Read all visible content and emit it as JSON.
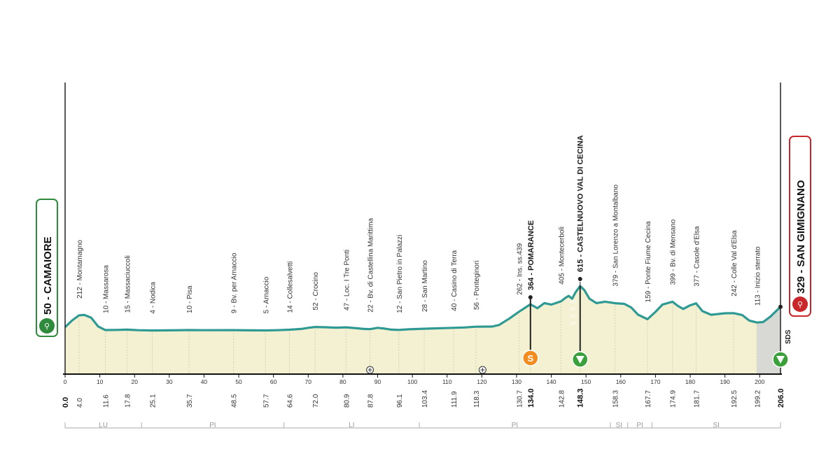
{
  "chart_data": {
    "type": "area",
    "title": "",
    "xlabel": "",
    "ylabel": "",
    "xlim": [
      0,
      206
    ],
    "ylim": [
      0,
      750
    ],
    "colors": {
      "line": "#2f9a93",
      "fill": "#f3f1d2",
      "start_badge": "#2e8b3c",
      "finish_badge": "#c8262b",
      "sprint_marker": "#f28c1f",
      "kom_marker": "#3aa03a",
      "spike": "#222222"
    },
    "x_ticks": [
      0,
      10,
      20,
      30,
      40,
      50,
      60,
      70,
      80,
      90,
      100,
      110,
      120,
      130,
      140,
      150,
      160,
      170,
      180,
      190,
      200
    ],
    "alt_scale": [
      "400",
      "300",
      "200",
      "100"
    ],
    "profile": [
      [
        0,
        50
      ],
      [
        2,
        140
      ],
      [
        4,
        212
      ],
      [
        5.5,
        218
      ],
      [
        7.5,
        180
      ],
      [
        9.5,
        60
      ],
      [
        11.6,
        10
      ],
      [
        15,
        12
      ],
      [
        17.8,
        15
      ],
      [
        21,
        8
      ],
      [
        25.1,
        4
      ],
      [
        30,
        6
      ],
      [
        35.7,
        10
      ],
      [
        40,
        8
      ],
      [
        48.5,
        9
      ],
      [
        53,
        6
      ],
      [
        57.7,
        5
      ],
      [
        61,
        8
      ],
      [
        64.6,
        14
      ],
      [
        68,
        25
      ],
      [
        70,
        40
      ],
      [
        72,
        52
      ],
      [
        75,
        48
      ],
      [
        78,
        42
      ],
      [
        80.9,
        47
      ],
      [
        84,
        35
      ],
      [
        86,
        25
      ],
      [
        87.8,
        22
      ],
      [
        90,
        40
      ],
      [
        92,
        30
      ],
      [
        94,
        15
      ],
      [
        96.1,
        12
      ],
      [
        99,
        20
      ],
      [
        103.4,
        28
      ],
      [
        108,
        35
      ],
      [
        111.9,
        40
      ],
      [
        115,
        45
      ],
      [
        118.3,
        56
      ],
      [
        123,
        58
      ],
      [
        125,
        80
      ],
      [
        128,
        170
      ],
      [
        130.7,
        262
      ],
      [
        134,
        364
      ],
      [
        136,
        310
      ],
      [
        138,
        380
      ],
      [
        140,
        360
      ],
      [
        142.8,
        405
      ],
      [
        144,
        450
      ],
      [
        145,
        480
      ],
      [
        146,
        440
      ],
      [
        147,
        530
      ],
      [
        148.3,
        615
      ],
      [
        149.5,
        560
      ],
      [
        151,
        440
      ],
      [
        153,
        380
      ],
      [
        155.5,
        400
      ],
      [
        158.3,
        379
      ],
      [
        161,
        370
      ],
      [
        163,
        320
      ],
      [
        165,
        220
      ],
      [
        167.7,
        159
      ],
      [
        170,
        260
      ],
      [
        172,
        360
      ],
      [
        174.9,
        399
      ],
      [
        176.5,
        340
      ],
      [
        178,
        300
      ],
      [
        180,
        350
      ],
      [
        181.7,
        377
      ],
      [
        183.5,
        270
      ],
      [
        186,
        220
      ],
      [
        190,
        240
      ],
      [
        192.5,
        242
      ],
      [
        195,
        215
      ],
      [
        197,
        140
      ],
      [
        199.2,
        113
      ],
      [
        201,
        120
      ],
      [
        203,
        190
      ],
      [
        206,
        329
      ]
    ],
    "unpaved_from_km": 199.2,
    "waypoints": [
      {
        "km": 4.0,
        "label": "212 - Montamagno"
      },
      {
        "km": 11.6,
        "label": "10 - Massarosa"
      },
      {
        "km": 17.8,
        "label": "15 - Massaciuccoli"
      },
      {
        "km": 25.1,
        "label": "4 - Nodica"
      },
      {
        "km": 35.7,
        "label": "10 - Pisa"
      },
      {
        "km": 48.5,
        "label": "9 - Bv. per Arnaccio"
      },
      {
        "km": 57.7,
        "label": "5 - Arnaccio"
      },
      {
        "km": 64.6,
        "label": "14 - Collesalvetti"
      },
      {
        "km": 72.0,
        "label": "52 - Crocino"
      },
      {
        "km": 80.9,
        "label": "47 - Loc. I Tre Ponti"
      },
      {
        "km": 87.8,
        "label": "22 - Bv. di Castellina Marittima"
      },
      {
        "km": 96.1,
        "label": "12 - San Pietro in Palazzi"
      },
      {
        "km": 103.4,
        "label": "28 - San Martino"
      },
      {
        "km": 111.9,
        "label": "40 - Casino di Terra"
      },
      {
        "km": 118.3,
        "label": "56 - Ponteginori"
      },
      {
        "km": 130.7,
        "label": "262 - Ins. ss.439"
      },
      {
        "km": 134.0,
        "label": "364 - POMARANCE",
        "major": true
      },
      {
        "km": 142.8,
        "label": "405 - Montecerboli"
      },
      {
        "km": 148.3,
        "label": "615 - CASTELNUOVO VAL DI CECINA",
        "major": true
      },
      {
        "km": 158.3,
        "label": "379 - San Lorenzo a Montalbano"
      },
      {
        "km": 167.7,
        "label": "159 - Ponte Fiume Cecina"
      },
      {
        "km": 174.9,
        "label": "399 - Bv. di Mensano"
      },
      {
        "km": 181.7,
        "label": "377 - Casole d'Elsa"
      },
      {
        "km": 192.5,
        "label": "242 - Colle Val d'Elsa"
      },
      {
        "km": 199.2,
        "label": "113 - Inizio sterrato"
      }
    ],
    "km_labels": [
      {
        "km": 0,
        "label": "0.0",
        "major": true
      },
      {
        "km": 4.0,
        "label": "4.0"
      },
      {
        "km": 11.6,
        "label": "11.6"
      },
      {
        "km": 17.8,
        "label": "17.8"
      },
      {
        "km": 25.1,
        "label": "25.1"
      },
      {
        "km": 35.7,
        "label": "35.7"
      },
      {
        "km": 48.5,
        "label": "48.5"
      },
      {
        "km": 57.7,
        "label": "57.7"
      },
      {
        "km": 64.6,
        "label": "64.6"
      },
      {
        "km": 72.0,
        "label": "72.0"
      },
      {
        "km": 80.9,
        "label": "80.9"
      },
      {
        "km": 87.8,
        "label": "87.8"
      },
      {
        "km": 96.1,
        "label": "96.1"
      },
      {
        "km": 103.4,
        "label": "103.4"
      },
      {
        "km": 111.9,
        "label": "111.9"
      },
      {
        "km": 118.3,
        "label": "118.3"
      },
      {
        "km": 130.7,
        "label": "130.7"
      },
      {
        "km": 134.0,
        "label": "134.0",
        "major": true
      },
      {
        "km": 142.8,
        "label": "142.8"
      },
      {
        "km": 148.3,
        "label": "148.3",
        "major": true
      },
      {
        "km": 158.3,
        "label": "158.3"
      },
      {
        "km": 167.7,
        "label": "167.7"
      },
      {
        "km": 174.9,
        "label": "174.9"
      },
      {
        "km": 181.7,
        "label": "181.7"
      },
      {
        "km": 192.5,
        "label": "192.5"
      },
      {
        "km": 199.2,
        "label": "199.2"
      },
      {
        "km": 206.0,
        "label": "206.0",
        "major": true
      }
    ],
    "regions": [
      {
        "from": 0,
        "to": 22,
        "label": "LU"
      },
      {
        "from": 22,
        "to": 63,
        "label": "PI"
      },
      {
        "from": 63,
        "to": 102,
        "label": "LI"
      },
      {
        "from": 102,
        "to": 157,
        "label": "PI"
      },
      {
        "from": 157,
        "to": 162,
        "label": "SI"
      },
      {
        "from": 162,
        "to": 169,
        "label": "PI"
      },
      {
        "from": 169,
        "to": 206,
        "label": "SI"
      }
    ],
    "start": {
      "km": 0,
      "altitude": 50,
      "label": "50 - CAMAIORE"
    },
    "finish": {
      "km": 206,
      "altitude": 329,
      "label": "329 - SAN GIMIGNANO"
    },
    "sprint": {
      "km": 134.0,
      "symbol": "S"
    },
    "kom": [
      {
        "km": 148.3
      },
      {
        "km": 206.0
      }
    ],
    "refreshment_kms": [
      87.8,
      120.2
    ],
    "sds_label": "SDS"
  }
}
